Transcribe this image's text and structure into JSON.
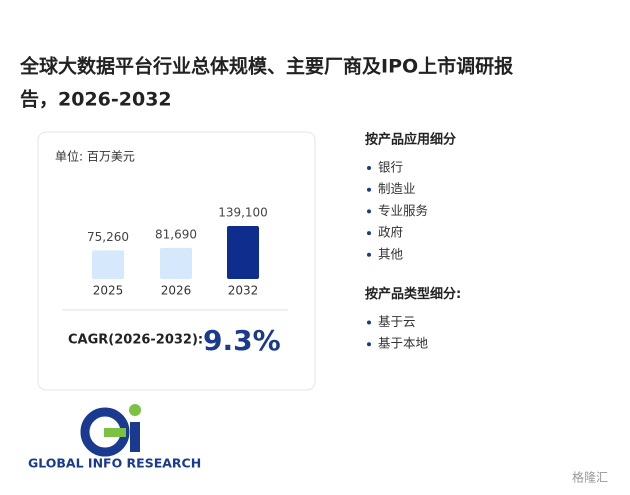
{
  "title_lines": [
    "全球大数据平台行业总体规模、主要厂商及IPO上市调研报",
    "告，2026-2032"
  ],
  "chart_data": {
    "type": "bar",
    "unit_label": "单位: 百万美元",
    "categories": [
      "2025",
      "2026",
      "2032"
    ],
    "values": [
      75260,
      81690,
      139100
    ],
    "value_labels": [
      "75,260",
      "81,690",
      "139,100"
    ],
    "colors": [
      "#d6e8fb",
      "#d6e8fb",
      "#0f2d8c"
    ]
  },
  "cagr": {
    "label": "CAGR(2026-2032):",
    "value": "9.3%"
  },
  "segments": [
    {
      "heading": "按产品应用细分",
      "items": [
        "银行",
        "制造业",
        "专业服务",
        "政府",
        "其他"
      ]
    },
    {
      "heading": "按产品类型细分:",
      "items": [
        "基于云",
        "基于本地"
      ]
    }
  ],
  "logo_text": "GLOBAL INFO RESEARCH",
  "brand": "格隆汇"
}
